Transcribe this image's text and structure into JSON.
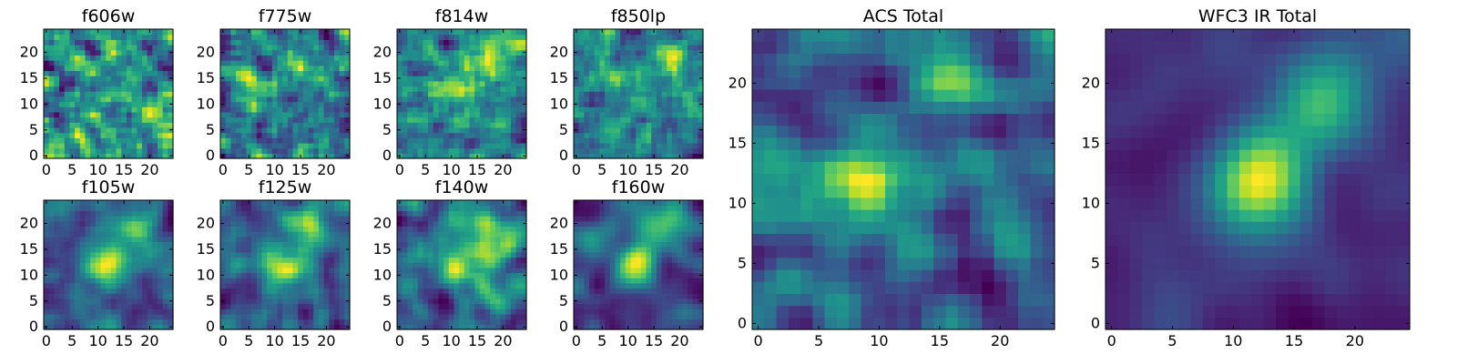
{
  "chart_data": [
    {
      "type": "heatmap",
      "title": "f606w",
      "xlim": [
        0,
        24
      ],
      "ylim": [
        0,
        24
      ],
      "xticks": [
        0,
        5,
        10,
        15,
        20
      ],
      "yticks": [
        0,
        5,
        10,
        15,
        20
      ],
      "colormap": "viridis",
      "seed": 11,
      "sigma": 0.6,
      "noise": 0.55,
      "blobs": []
    },
    {
      "type": "heatmap",
      "title": "f775w",
      "xlim": [
        0,
        24
      ],
      "ylim": [
        0,
        24
      ],
      "xticks": [
        0,
        5,
        10,
        15,
        20
      ],
      "yticks": [
        0,
        5,
        10,
        15,
        20
      ],
      "colormap": "viridis",
      "seed": 23,
      "sigma": 0.7,
      "noise": 0.5,
      "blobs": [
        [
          5,
          13,
          0.35
        ],
        [
          15,
          18,
          0.3
        ]
      ]
    },
    {
      "type": "heatmap",
      "title": "f814w",
      "xlim": [
        0,
        24
      ],
      "ylim": [
        0,
        24
      ],
      "xticks": [
        0,
        5,
        10,
        15,
        20
      ],
      "yticks": [
        0,
        5,
        10,
        15,
        20
      ],
      "colormap": "viridis",
      "seed": 37,
      "sigma": 0.7,
      "noise": 0.5,
      "blobs": [
        [
          11,
          12,
          0.35
        ],
        [
          17,
          20,
          0.35
        ]
      ]
    },
    {
      "type": "heatmap",
      "title": "f850lp",
      "xlim": [
        0,
        24
      ],
      "ylim": [
        0,
        24
      ],
      "xticks": [
        0,
        5,
        10,
        15,
        20
      ],
      "yticks": [
        0,
        5,
        10,
        15,
        20
      ],
      "colormap": "viridis",
      "seed": 41,
      "sigma": 0.7,
      "noise": 0.5,
      "blobs": [
        [
          18,
          19,
          0.45
        ],
        [
          13,
          12,
          0.25
        ]
      ]
    },
    {
      "type": "heatmap",
      "title": "f105w",
      "xlim": [
        0,
        24
      ],
      "ylim": [
        0,
        24
      ],
      "xticks": [
        0,
        5,
        10,
        15,
        20
      ],
      "yticks": [
        0,
        5,
        10,
        15,
        20
      ],
      "colormap": "viridis",
      "seed": 53,
      "sigma": 1.2,
      "noise": 0.3,
      "blobs": [
        [
          12,
          12,
          0.6
        ],
        [
          17,
          19,
          0.4
        ]
      ]
    },
    {
      "type": "heatmap",
      "title": "f125w",
      "xlim": [
        0,
        24
      ],
      "ylim": [
        0,
        24
      ],
      "xticks": [
        0,
        5,
        10,
        15,
        20
      ],
      "yticks": [
        0,
        5,
        10,
        15,
        20
      ],
      "colormap": "viridis",
      "seed": 67,
      "sigma": 1.2,
      "noise": 0.3,
      "blobs": [
        [
          12,
          12,
          0.5
        ],
        [
          16,
          20,
          0.55
        ]
      ]
    },
    {
      "type": "heatmap",
      "title": "f140w",
      "xlim": [
        0,
        24
      ],
      "ylim": [
        0,
        24
      ],
      "xticks": [
        0,
        5,
        10,
        15,
        20
      ],
      "yticks": [
        0,
        5,
        10,
        15,
        20
      ],
      "colormap": "viridis",
      "seed": 79,
      "sigma": 1.2,
      "noise": 0.32,
      "blobs": [
        [
          12,
          12,
          0.5
        ],
        [
          17,
          18,
          0.45
        ]
      ]
    },
    {
      "type": "heatmap",
      "title": "f160w",
      "xlim": [
        0,
        24
      ],
      "ylim": [
        0,
        24
      ],
      "xticks": [
        0,
        5,
        10,
        15,
        20
      ],
      "yticks": [
        0,
        5,
        10,
        15,
        20
      ],
      "colormap": "viridis",
      "seed": 83,
      "sigma": 1.4,
      "noise": 0.25,
      "blobs": [
        [
          12,
          12,
          0.65
        ],
        [
          16,
          20,
          0.5
        ]
      ]
    },
    {
      "type": "heatmap",
      "title": "ACS Total",
      "xlim": [
        0,
        24
      ],
      "ylim": [
        0,
        24
      ],
      "xticks": [
        0,
        5,
        10,
        15,
        20
      ],
      "yticks": [
        0,
        5,
        10,
        15,
        20
      ],
      "colormap": "viridis",
      "seed": 97,
      "sigma": 1.0,
      "noise": 0.4,
      "blobs": [
        [
          16,
          19,
          0.5
        ],
        [
          6,
          12,
          0.4
        ],
        [
          11,
          12,
          0.3
        ]
      ]
    },
    {
      "type": "heatmap",
      "title": "WFC3 IR Total",
      "xlim": [
        0,
        24
      ],
      "ylim": [
        0,
        24
      ],
      "xticks": [
        0,
        5,
        10,
        15,
        20
      ],
      "yticks": [
        0,
        5,
        10,
        15,
        20
      ],
      "colormap": "viridis",
      "seed": 101,
      "sigma": 1.8,
      "noise": 0.15,
      "blobs": [
        [
          12,
          12,
          0.75
        ],
        [
          17,
          19,
          0.6
        ]
      ]
    }
  ]
}
